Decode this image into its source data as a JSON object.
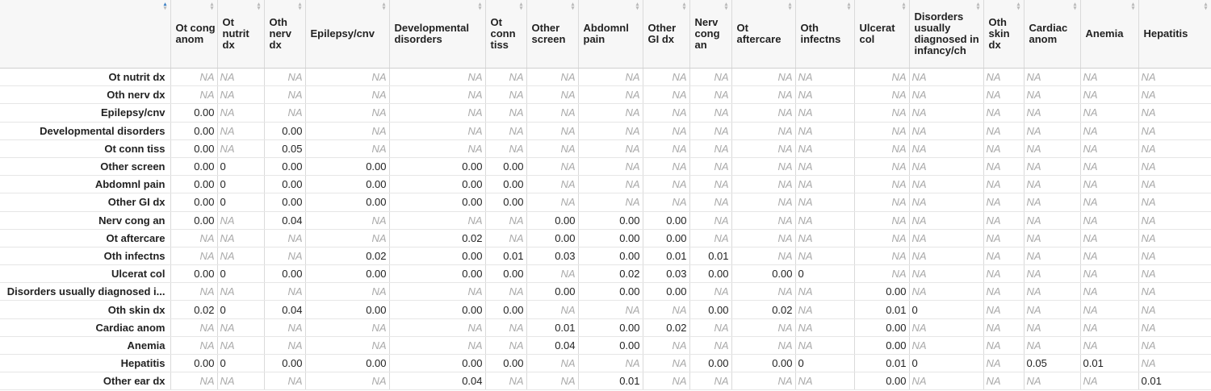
{
  "table": {
    "corner_label": "",
    "columns": [
      "Ot cong anom",
      "Ot nutrit dx",
      "Oth nerv dx",
      "Epilepsy/cnv",
      "Developmental disorders",
      "Ot conn tiss",
      "Other screen",
      "Abdomnl pain",
      "Other GI dx",
      "Nerv cong an",
      "Ot aftercare",
      "Oth infectns",
      "Ulcerat col",
      "Disorders usually diagnosed in infancy/ch",
      "Oth skin dx",
      "Cardiac anom",
      "Anemia",
      "Hepatitis"
    ],
    "rows": [
      {
        "name": "Ot nutrit dx",
        "cells": [
          "NA",
          "NA",
          "NA",
          "NA",
          "NA",
          "NA",
          "NA",
          "NA",
          "NA",
          "NA",
          "NA",
          "NA",
          "NA",
          "NA",
          "NA",
          "NA",
          "NA",
          "NA"
        ]
      },
      {
        "name": "Oth nerv dx",
        "cells": [
          "NA",
          "NA",
          "NA",
          "NA",
          "NA",
          "NA",
          "NA",
          "NA",
          "NA",
          "NA",
          "NA",
          "NA",
          "NA",
          "NA",
          "NA",
          "NA",
          "NA",
          "NA"
        ]
      },
      {
        "name": "Epilepsy/cnv",
        "cells": [
          "0.00",
          "NA",
          "NA",
          "NA",
          "NA",
          "NA",
          "NA",
          "NA",
          "NA",
          "NA",
          "NA",
          "NA",
          "NA",
          "NA",
          "NA",
          "NA",
          "NA",
          "NA"
        ]
      },
      {
        "name": "Developmental disorders",
        "cells": [
          "0.00",
          "NA",
          "0.00",
          "NA",
          "NA",
          "NA",
          "NA",
          "NA",
          "NA",
          "NA",
          "NA",
          "NA",
          "NA",
          "NA",
          "NA",
          "NA",
          "NA",
          "NA"
        ]
      },
      {
        "name": "Ot conn tiss",
        "cells": [
          "0.00",
          "NA",
          "0.05",
          "NA",
          "NA",
          "NA",
          "NA",
          "NA",
          "NA",
          "NA",
          "NA",
          "NA",
          "NA",
          "NA",
          "NA",
          "NA",
          "NA",
          "NA"
        ]
      },
      {
        "name": "Other screen",
        "cells": [
          "0.00",
          "0",
          "0.00",
          "0.00",
          "0.00",
          "0.00",
          "NA",
          "NA",
          "NA",
          "NA",
          "NA",
          "NA",
          "NA",
          "NA",
          "NA",
          "NA",
          "NA",
          "NA"
        ]
      },
      {
        "name": "Abdomnl pain",
        "cells": [
          "0.00",
          "0",
          "0.00",
          "0.00",
          "0.00",
          "0.00",
          "NA",
          "NA",
          "NA",
          "NA",
          "NA",
          "NA",
          "NA",
          "NA",
          "NA",
          "NA",
          "NA",
          "NA"
        ]
      },
      {
        "name": "Other GI dx",
        "cells": [
          "0.00",
          "0",
          "0.00",
          "0.00",
          "0.00",
          "0.00",
          "NA",
          "NA",
          "NA",
          "NA",
          "NA",
          "NA",
          "NA",
          "NA",
          "NA",
          "NA",
          "NA",
          "NA"
        ]
      },
      {
        "name": "Nerv cong an",
        "cells": [
          "0.00",
          "NA",
          "0.04",
          "NA",
          "NA",
          "NA",
          "0.00",
          "0.00",
          "0.00",
          "NA",
          "NA",
          "NA",
          "NA",
          "NA",
          "NA",
          "NA",
          "NA",
          "NA"
        ]
      },
      {
        "name": "Ot aftercare",
        "cells": [
          "NA",
          "NA",
          "NA",
          "NA",
          "0.02",
          "NA",
          "0.00",
          "0.00",
          "0.00",
          "NA",
          "NA",
          "NA",
          "NA",
          "NA",
          "NA",
          "NA",
          "NA",
          "NA"
        ]
      },
      {
        "name": "Oth infectns",
        "cells": [
          "NA",
          "NA",
          "NA",
          "0.02",
          "0.00",
          "0.01",
          "0.03",
          "0.00",
          "0.01",
          "0.01",
          "NA",
          "NA",
          "NA",
          "NA",
          "NA",
          "NA",
          "NA",
          "NA"
        ]
      },
      {
        "name": "Ulcerat col",
        "cells": [
          "0.00",
          "0",
          "0.00",
          "0.00",
          "0.00",
          "0.00",
          "NA",
          "0.02",
          "0.03",
          "0.00",
          "0.00",
          "0",
          "NA",
          "NA",
          "NA",
          "NA",
          "NA",
          "NA"
        ]
      },
      {
        "name": "Disorders usually diagnosed i...",
        "cells": [
          "NA",
          "NA",
          "NA",
          "NA",
          "NA",
          "NA",
          "0.00",
          "0.00",
          "0.00",
          "NA",
          "NA",
          "NA",
          "0.00",
          "NA",
          "NA",
          "NA",
          "NA",
          "NA"
        ]
      },
      {
        "name": "Oth skin dx",
        "cells": [
          "0.02",
          "0",
          "0.04",
          "0.00",
          "0.00",
          "0.00",
          "NA",
          "NA",
          "NA",
          "0.00",
          "0.02",
          "NA",
          "0.01",
          "0",
          "NA",
          "NA",
          "NA",
          "NA"
        ]
      },
      {
        "name": "Cardiac anom",
        "cells": [
          "NA",
          "NA",
          "NA",
          "NA",
          "NA",
          "NA",
          "0.01",
          "0.00",
          "0.02",
          "NA",
          "NA",
          "NA",
          "0.00",
          "NA",
          "NA",
          "NA",
          "NA",
          "NA"
        ]
      },
      {
        "name": "Anemia",
        "cells": [
          "NA",
          "NA",
          "NA",
          "NA",
          "NA",
          "NA",
          "0.04",
          "0.00",
          "NA",
          "NA",
          "NA",
          "NA",
          "0.00",
          "NA",
          "NA",
          "NA",
          "NA",
          "NA"
        ]
      },
      {
        "name": "Hepatitis",
        "cells": [
          "0.00",
          "0",
          "0.00",
          "0.00",
          "0.00",
          "0.00",
          "NA",
          "NA",
          "NA",
          "0.00",
          "0.00",
          "0",
          "0.01",
          "0",
          "NA",
          "0.05",
          "0.01",
          "NA"
        ]
      },
      {
        "name": "Other ear dx",
        "cells": [
          "NA",
          "NA",
          "NA",
          "NA",
          "0.04",
          "NA",
          "NA",
          "0.01",
          "NA",
          "NA",
          "NA",
          "NA",
          "0.00",
          "NA",
          "NA",
          "NA",
          "NA",
          "0.01"
        ]
      }
    ],
    "left_aligned_columns": [
      1,
      11,
      13,
      14,
      15,
      16,
      17
    ],
    "sort": {
      "column": "row-names",
      "direction": "ascending"
    },
    "colors": {
      "header_bg": "#f7f7f7",
      "na_text": "#a9a9a9",
      "border": "#dadada",
      "sort_active": "#3b7fc4"
    },
    "icons": {
      "sort_indicator": "sort-icon"
    }
  }
}
